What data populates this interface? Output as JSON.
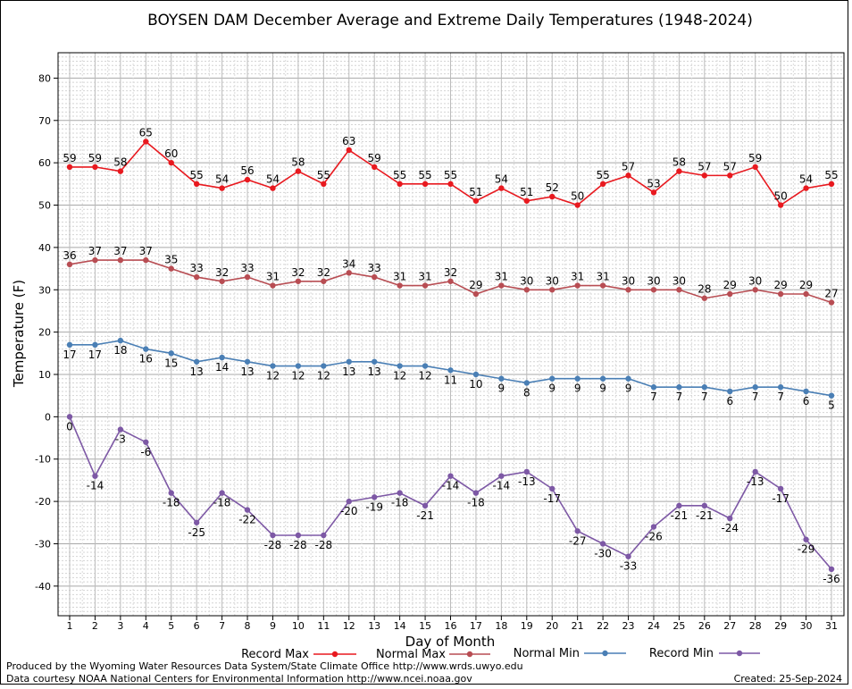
{
  "chart_data": {
    "type": "line",
    "title": "BOYSEN DAM December Average and Extreme Daily Temperatures (1948-2024)",
    "xlabel": "Day of Month",
    "ylabel": "Temperature (F)",
    "ylim": [
      -47,
      86
    ],
    "y_ticks": [
      -40,
      -30,
      -20,
      -10,
      0,
      10,
      20,
      30,
      40,
      50,
      60,
      70,
      80
    ],
    "x": [
      1,
      2,
      3,
      4,
      5,
      6,
      7,
      8,
      9,
      10,
      11,
      12,
      13,
      14,
      15,
      16,
      17,
      18,
      19,
      20,
      21,
      22,
      23,
      24,
      25,
      26,
      27,
      28,
      29,
      30,
      31
    ],
    "grid": true,
    "legend_position": "bottom",
    "series": [
      {
        "name": "Record Max",
        "color": "#e8191f",
        "label_pos": "above",
        "values": [
          59,
          59,
          58,
          65,
          60,
          55,
          54,
          56,
          54,
          58,
          55,
          63,
          59,
          55,
          55,
          55,
          51,
          54,
          51,
          52,
          50,
          55,
          57,
          53,
          58,
          57,
          57,
          59,
          50,
          54,
          55
        ]
      },
      {
        "name": "Normal Max",
        "color": "#b84d53",
        "label_pos": "above",
        "values": [
          36,
          37,
          37,
          37,
          35,
          33,
          32,
          33,
          31,
          32,
          32,
          34,
          33,
          31,
          31,
          32,
          29,
          31,
          30,
          30,
          31,
          31,
          30,
          30,
          30,
          28,
          29,
          30,
          29,
          29,
          27
        ]
      },
      {
        "name": "Normal Min",
        "color": "#4a7fb5",
        "label_pos": "below",
        "values": [
          17,
          17,
          18,
          16,
          15,
          13,
          14,
          13,
          12,
          12,
          12,
          13,
          13,
          12,
          12,
          11,
          10,
          9,
          8,
          9,
          9,
          9,
          9,
          7,
          7,
          7,
          6,
          7,
          7,
          6,
          5
        ]
      },
      {
        "name": "Record Min",
        "color": "#7d58a5",
        "label_pos": "below",
        "values": [
          0,
          -14,
          -3,
          -6,
          -18,
          -25,
          -18,
          -22,
          -28,
          -28,
          -28,
          -20,
          -19,
          -18,
          -21,
          -14,
          -18,
          -14,
          -13,
          -17,
          -27,
          -30,
          -33,
          -26,
          -21,
          -21,
          -24,
          -13,
          -17,
          -29,
          -36
        ]
      }
    ]
  },
  "footer": {
    "line1": "Produced by the Wyoming Water Resources Data System/State Climate Office http://www.wrds.uwyo.edu",
    "line2": "Data courtesy NOAA National Centers for Environmental Information http://www.ncei.noaa.gov",
    "created": "Created:  25-Sep-2024"
  }
}
